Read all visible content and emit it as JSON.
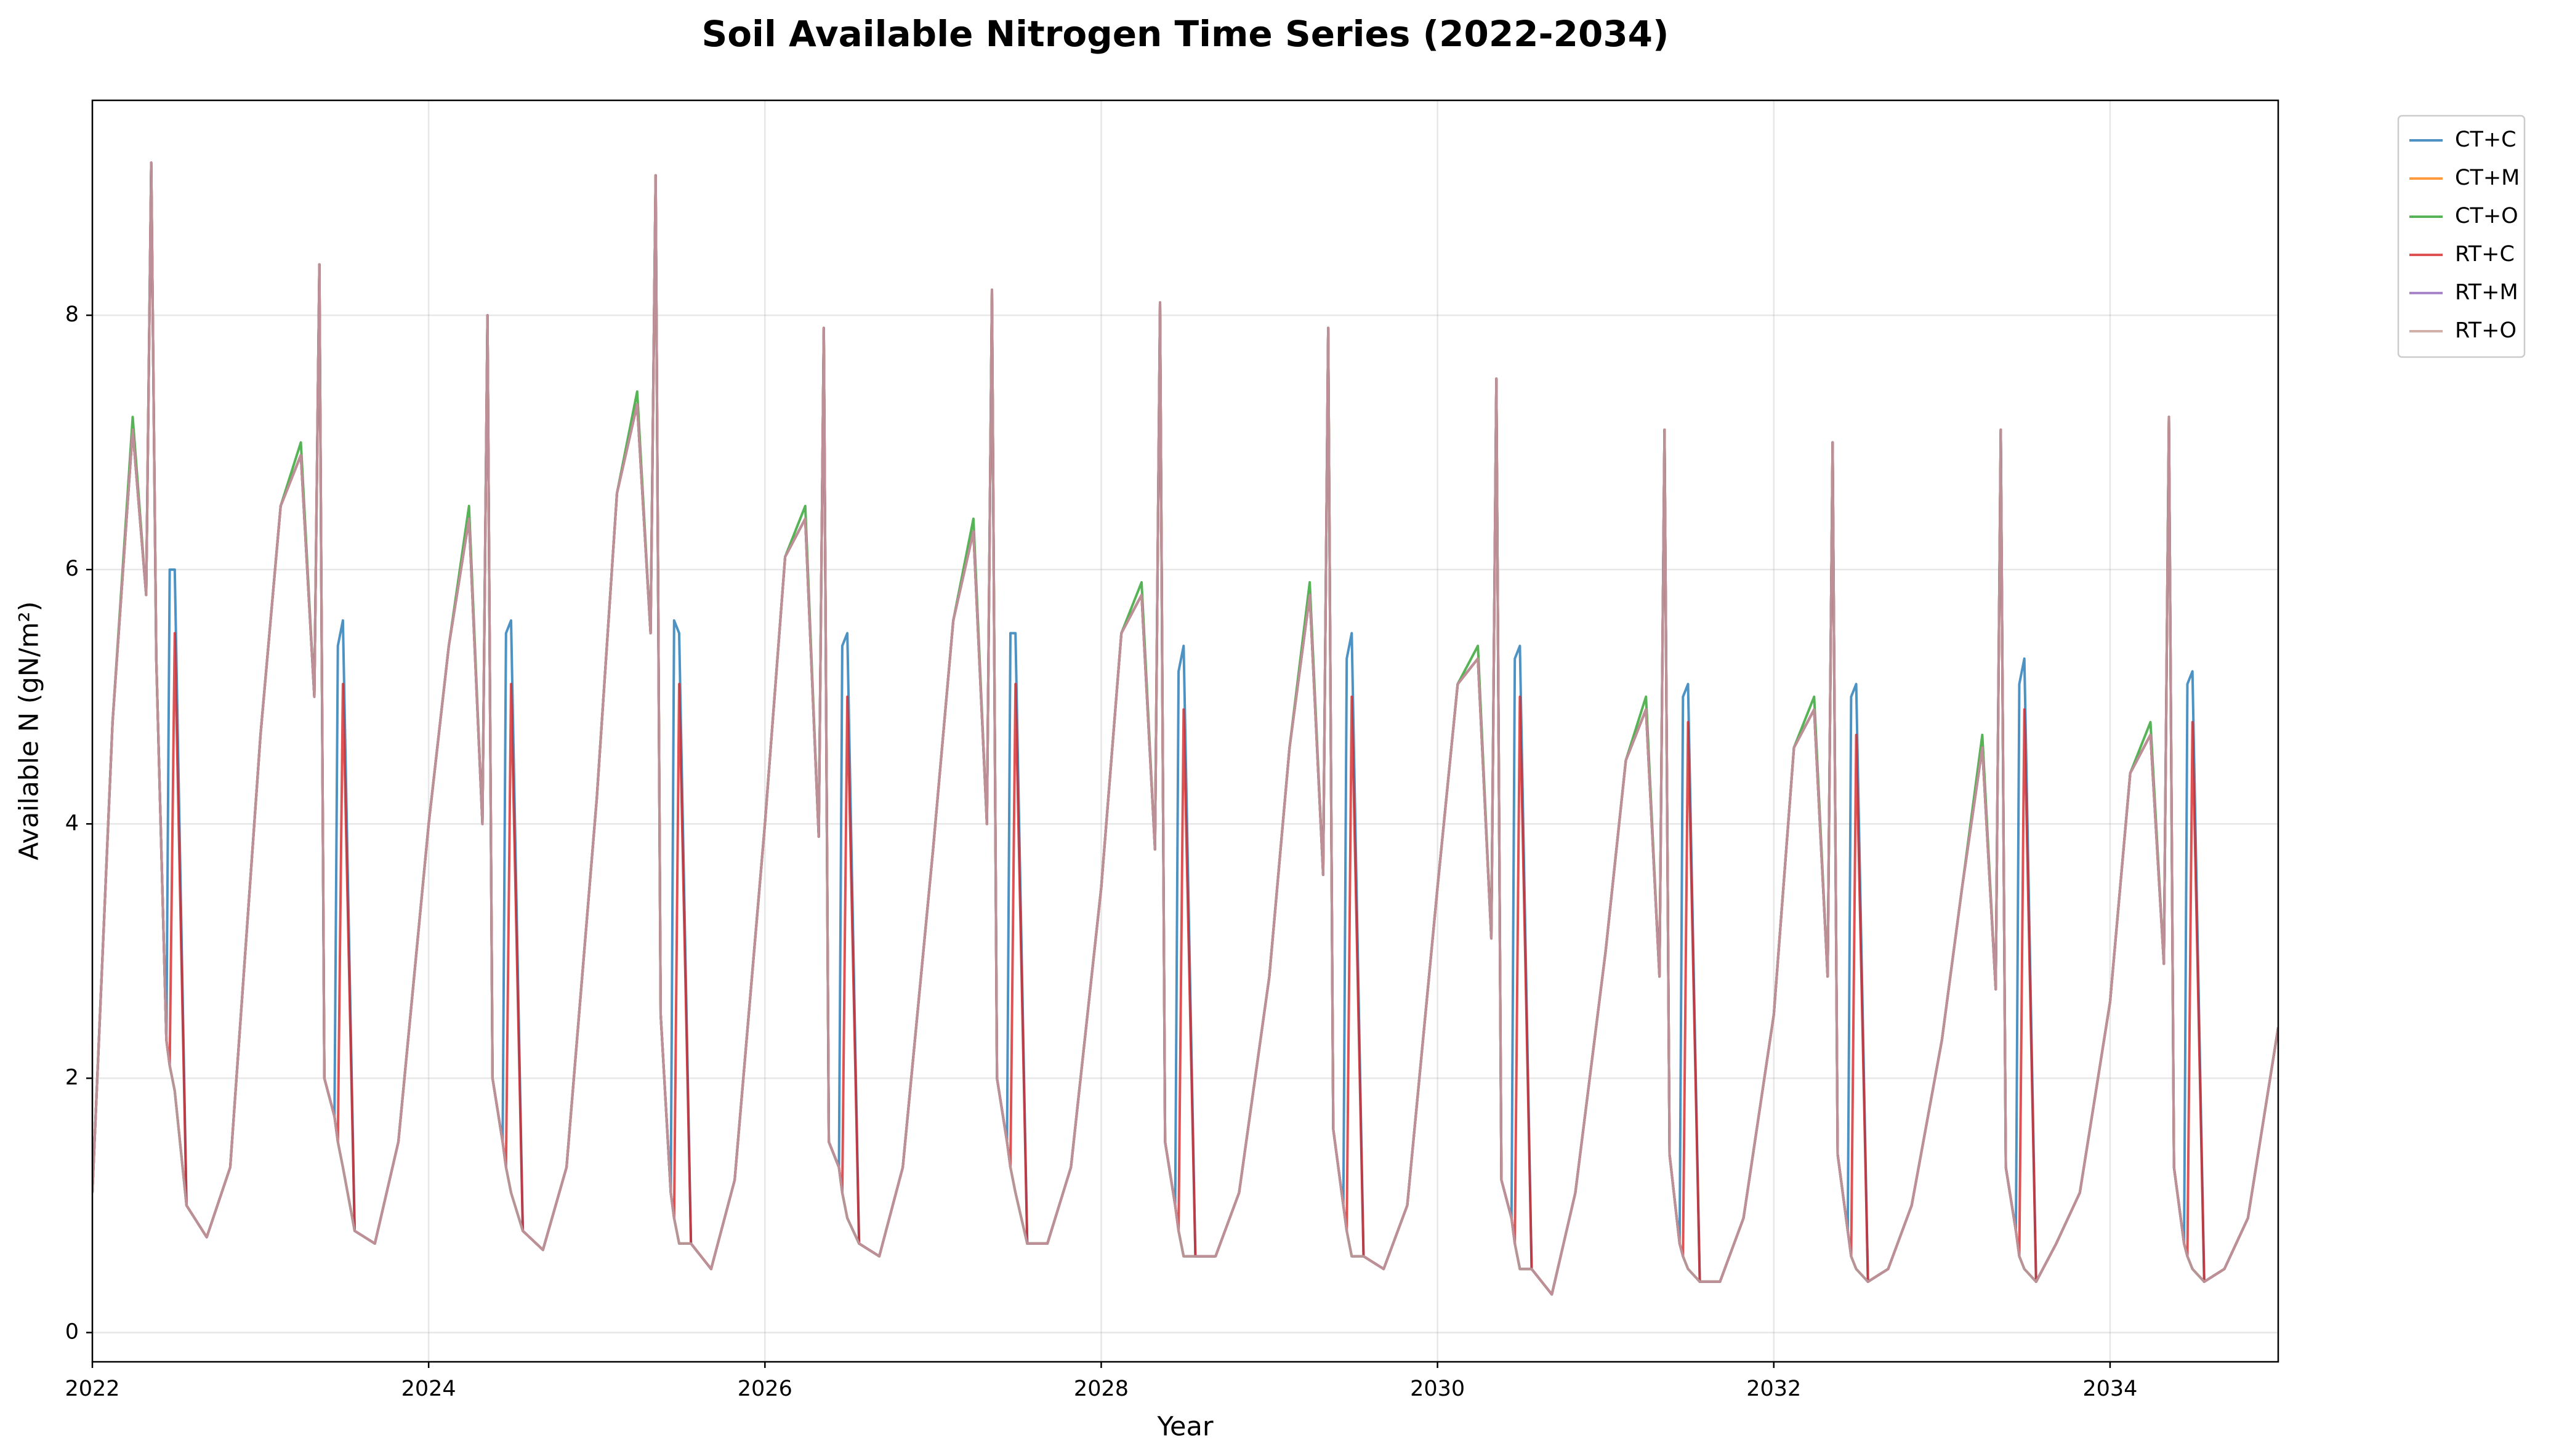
{
  "chart_data": {
    "type": "line",
    "title": "Soil Available Nitrogen Time Series (2022-2034)",
    "xlabel": "Year",
    "ylabel": "Available N (gN/m²)",
    "xlim": [
      2022,
      2035
    ],
    "ylim": [
      -0.23,
      9.69
    ],
    "xticks": [
      2022,
      2024,
      2026,
      2028,
      2030,
      2032,
      2034
    ],
    "yticks": [
      0,
      2,
      4,
      6,
      8
    ],
    "grid": true,
    "legend": "outside upper right",
    "line_opacity": 0.8,
    "x": [
      2022,
      2022.12,
      2022.24,
      2022.32,
      2022.35,
      2022.38,
      2022.44,
      2022.46,
      2022.49,
      2022.56,
      2022.68,
      2022.82,
      2023,
      2023.12,
      2023.24,
      2023.32,
      2023.35,
      2023.38,
      2023.44,
      2023.46,
      2023.49,
      2023.56,
      2023.68,
      2023.82,
      2024,
      2024.12,
      2024.24,
      2024.32,
      2024.35,
      2024.38,
      2024.44,
      2024.46,
      2024.49,
      2024.56,
      2024.68,
      2024.82,
      2025,
      2025.12,
      2025.24,
      2025.32,
      2025.35,
      2025.38,
      2025.44,
      2025.46,
      2025.49,
      2025.56,
      2025.68,
      2025.82,
      2026,
      2026.12,
      2026.24,
      2026.32,
      2026.35,
      2026.38,
      2026.44,
      2026.46,
      2026.49,
      2026.56,
      2026.68,
      2026.82,
      2027,
      2027.12,
      2027.24,
      2027.32,
      2027.35,
      2027.38,
      2027.44,
      2027.46,
      2027.49,
      2027.56,
      2027.68,
      2027.82,
      2028,
      2028.12,
      2028.24,
      2028.32,
      2028.35,
      2028.38,
      2028.44,
      2028.46,
      2028.49,
      2028.56,
      2028.68,
      2028.82,
      2029,
      2029.12,
      2029.24,
      2029.32,
      2029.35,
      2029.38,
      2029.44,
      2029.46,
      2029.49,
      2029.56,
      2029.68,
      2029.82,
      2030,
      2030.12,
      2030.24,
      2030.32,
      2030.35,
      2030.38,
      2030.44,
      2030.46,
      2030.49,
      2030.56,
      2030.68,
      2030.82,
      2031,
      2031.12,
      2031.24,
      2031.32,
      2031.35,
      2031.38,
      2031.44,
      2031.46,
      2031.49,
      2031.56,
      2031.68,
      2031.82,
      2032,
      2032.12,
      2032.24,
      2032.32,
      2032.35,
      2032.38,
      2032.44,
      2032.46,
      2032.49,
      2032.56,
      2032.68,
      2032.82,
      2033,
      2033.12,
      2033.24,
      2033.32,
      2033.35,
      2033.38,
      2033.44,
      2033.46,
      2033.49,
      2033.56,
      2033.68,
      2033.82,
      2034,
      2034.12,
      2034.24,
      2034.32,
      2034.35,
      2034.38,
      2034.44,
      2034.46,
      2034.49,
      2034.56,
      2034.68,
      2034.82,
      2035
    ],
    "series": [
      {
        "name": "CT+C",
        "color": "#1f77b4",
        "values": [
          1.1,
          4.8,
          7.1,
          5.8,
          9.2,
          5.3,
          2.3,
          6.0,
          6.0,
          1.0,
          0.75,
          1.3,
          4.7,
          6.5,
          6.9,
          5.0,
          8.4,
          2.0,
          1.7,
          5.4,
          5.6,
          0.8,
          0.7,
          1.5,
          4.0,
          5.4,
          6.4,
          4.0,
          8.0,
          2.0,
          1.5,
          5.5,
          5.6,
          0.8,
          0.65,
          1.3,
          4.2,
          6.6,
          7.3,
          5.5,
          9.1,
          2.5,
          1.1,
          5.6,
          5.5,
          0.7,
          0.5,
          1.2,
          4.0,
          6.1,
          6.4,
          3.9,
          7.9,
          1.5,
          1.3,
          5.4,
          5.5,
          0.7,
          0.6,
          1.3,
          3.8,
          5.6,
          6.3,
          4.0,
          8.2,
          2.0,
          1.5,
          5.5,
          5.5,
          0.7,
          0.7,
          1.3,
          3.5,
          5.5,
          5.8,
          3.8,
          8.1,
          1.5,
          1.0,
          5.2,
          5.4,
          0.6,
          0.6,
          1.1,
          2.8,
          4.6,
          5.8,
          3.6,
          7.9,
          1.6,
          1.0,
          5.3,
          5.5,
          0.6,
          0.5,
          1.0,
          3.5,
          5.1,
          5.3,
          3.1,
          7.5,
          1.2,
          0.9,
          5.3,
          5.4,
          0.5,
          0.3,
          1.1,
          3.0,
          4.5,
          4.9,
          2.8,
          7.1,
          1.4,
          0.7,
          5.0,
          5.1,
          0.4,
          0.4,
          0.9,
          2.5,
          4.6,
          4.9,
          2.8,
          7.0,
          1.4,
          0.8,
          5.0,
          5.1,
          0.4,
          0.5,
          1.0,
          2.3,
          3.5,
          4.6,
          2.7,
          7.1,
          1.3,
          0.8,
          5.1,
          5.3,
          0.4,
          0.7,
          1.1,
          2.6,
          4.4,
          4.7,
          2.9,
          7.2,
          1.3,
          0.7,
          5.1,
          5.2,
          0.4,
          0.5,
          0.9,
          2.4
        ]
      },
      {
        "name": "CT+M",
        "color": "#ff7f0e",
        "values": [
          1.1,
          4.8,
          7.1,
          5.8,
          9.2,
          5.3,
          2.3,
          2.1,
          1.9,
          1.0,
          0.75,
          1.3,
          4.7,
          6.5,
          6.9,
          5.0,
          8.4,
          2.0,
          1.7,
          1.5,
          1.3,
          0.8,
          0.7,
          1.5,
          4.0,
          5.4,
          6.4,
          4.0,
          8.0,
          2.0,
          1.5,
          1.3,
          1.1,
          0.8,
          0.65,
          1.3,
          4.2,
          6.6,
          7.3,
          5.5,
          9.1,
          2.5,
          1.1,
          0.9,
          0.7,
          0.7,
          0.5,
          1.2,
          4.0,
          6.1,
          6.4,
          3.9,
          7.9,
          1.5,
          1.3,
          1.1,
          0.9,
          0.7,
          0.6,
          1.3,
          3.8,
          5.6,
          6.3,
          4.0,
          8.2,
          2.0,
          1.5,
          1.3,
          1.1,
          0.7,
          0.7,
          1.3,
          3.5,
          5.5,
          5.8,
          3.8,
          8.1,
          1.5,
          1.0,
          0.8,
          0.6,
          0.6,
          0.6,
          1.1,
          2.8,
          4.6,
          5.8,
          3.6,
          7.9,
          1.6,
          1.0,
          0.8,
          0.6,
          0.6,
          0.5,
          1.0,
          3.5,
          5.1,
          5.3,
          3.1,
          7.5,
          1.2,
          0.9,
          0.7,
          0.5,
          0.5,
          0.3,
          1.1,
          3.0,
          4.5,
          4.9,
          2.8,
          7.1,
          1.4,
          0.7,
          0.6,
          0.5,
          0.4,
          0.4,
          0.9,
          2.5,
          4.6,
          4.9,
          2.8,
          7.0,
          1.4,
          0.8,
          0.6,
          0.5,
          0.4,
          0.5,
          1.0,
          2.3,
          3.5,
          4.6,
          2.7,
          7.1,
          1.3,
          0.8,
          0.6,
          0.5,
          0.4,
          0.7,
          1.1,
          2.6,
          4.4,
          4.7,
          2.9,
          7.2,
          1.3,
          0.7,
          0.6,
          0.5,
          0.4,
          0.5,
          0.9,
          2.4
        ]
      },
      {
        "name": "CT+O",
        "color": "#2ca02c",
        "values": [
          1.1,
          4.8,
          7.2,
          5.8,
          9.2,
          5.3,
          2.3,
          2.1,
          1.9,
          1.0,
          0.75,
          1.3,
          4.7,
          6.5,
          7.0,
          5.0,
          8.4,
          2.0,
          1.7,
          1.5,
          1.3,
          0.8,
          0.7,
          1.5,
          4.0,
          5.4,
          6.5,
          4.0,
          8.0,
          2.0,
          1.5,
          1.3,
          1.1,
          0.8,
          0.65,
          1.3,
          4.2,
          6.6,
          7.4,
          5.5,
          9.1,
          2.5,
          1.1,
          0.9,
          0.7,
          0.7,
          0.5,
          1.2,
          4.0,
          6.1,
          6.5,
          3.9,
          7.9,
          1.5,
          1.3,
          1.1,
          0.9,
          0.7,
          0.6,
          1.3,
          3.8,
          5.6,
          6.4,
          4.0,
          8.2,
          2.0,
          1.5,
          1.3,
          1.1,
          0.7,
          0.7,
          1.3,
          3.5,
          5.5,
          5.9,
          3.8,
          8.1,
          1.5,
          1.0,
          0.8,
          0.6,
          0.6,
          0.6,
          1.1,
          2.8,
          4.6,
          5.9,
          3.6,
          7.9,
          1.6,
          1.0,
          0.8,
          0.6,
          0.6,
          0.5,
          1.0,
          3.5,
          5.1,
          5.4,
          3.1,
          7.5,
          1.2,
          0.9,
          0.7,
          0.5,
          0.5,
          0.3,
          1.1,
          3.0,
          4.5,
          5.0,
          2.8,
          7.1,
          1.4,
          0.7,
          0.6,
          0.5,
          0.4,
          0.4,
          0.9,
          2.5,
          4.6,
          5.0,
          2.8,
          7.0,
          1.4,
          0.8,
          0.6,
          0.5,
          0.4,
          0.5,
          1.0,
          2.3,
          3.5,
          4.7,
          2.7,
          7.1,
          1.3,
          0.8,
          0.6,
          0.5,
          0.4,
          0.7,
          1.1,
          2.6,
          4.4,
          4.8,
          2.9,
          7.2,
          1.3,
          0.7,
          0.6,
          0.5,
          0.4,
          0.5,
          0.9,
          2.4
        ]
      },
      {
        "name": "RT+C",
        "color": "#d62728",
        "values": [
          1.1,
          4.8,
          7.1,
          5.8,
          9.2,
          5.3,
          2.3,
          2.1,
          5.5,
          1.0,
          0.75,
          1.3,
          4.7,
          6.5,
          6.9,
          5.0,
          8.4,
          2.0,
          1.7,
          1.5,
          5.1,
          0.8,
          0.7,
          1.5,
          4.0,
          5.4,
          6.4,
          4.0,
          8.0,
          2.0,
          1.5,
          1.3,
          5.1,
          0.8,
          0.65,
          1.3,
          4.2,
          6.6,
          7.3,
          5.5,
          9.1,
          2.5,
          1.1,
          0.9,
          5.1,
          0.7,
          0.5,
          1.2,
          4.0,
          6.1,
          6.4,
          3.9,
          7.9,
          1.5,
          1.3,
          1.1,
          5.0,
          0.7,
          0.6,
          1.3,
          3.8,
          5.6,
          6.3,
          4.0,
          8.2,
          2.0,
          1.5,
          1.3,
          5.1,
          0.7,
          0.7,
          1.3,
          3.5,
          5.5,
          5.8,
          3.8,
          8.1,
          1.5,
          1.0,
          0.8,
          4.9,
          0.6,
          0.6,
          1.1,
          2.8,
          4.6,
          5.8,
          3.6,
          7.9,
          1.6,
          1.0,
          0.8,
          5.0,
          0.6,
          0.5,
          1.0,
          3.5,
          5.1,
          5.3,
          3.1,
          7.5,
          1.2,
          0.9,
          0.7,
          5.0,
          0.5,
          0.3,
          1.1,
          3.0,
          4.5,
          4.9,
          2.8,
          7.1,
          1.4,
          0.7,
          0.6,
          4.8,
          0.4,
          0.4,
          0.9,
          2.5,
          4.6,
          4.9,
          2.8,
          7.0,
          1.4,
          0.8,
          0.6,
          4.7,
          0.4,
          0.5,
          1.0,
          2.3,
          3.5,
          4.6,
          2.7,
          7.1,
          1.3,
          0.8,
          0.6,
          4.9,
          0.4,
          0.7,
          1.1,
          2.6,
          4.4,
          4.7,
          2.9,
          7.2,
          1.3,
          0.7,
          0.6,
          4.8,
          0.4,
          0.5,
          0.9,
          2.4
        ]
      },
      {
        "name": "RT+M",
        "color": "#9467bd",
        "values": [
          1.1,
          4.8,
          7.1,
          5.8,
          9.2,
          5.3,
          2.3,
          2.1,
          1.9,
          1.0,
          0.75,
          1.3,
          4.7,
          6.5,
          6.9,
          5.0,
          8.4,
          2.0,
          1.7,
          1.5,
          1.3,
          0.8,
          0.7,
          1.5,
          4.0,
          5.4,
          6.4,
          4.0,
          8.0,
          2.0,
          1.5,
          1.3,
          1.1,
          0.8,
          0.65,
          1.3,
          4.2,
          6.6,
          7.3,
          5.5,
          9.1,
          2.5,
          1.1,
          0.9,
          0.7,
          0.7,
          0.5,
          1.2,
          4.0,
          6.1,
          6.4,
          3.9,
          7.9,
          1.5,
          1.3,
          1.1,
          0.9,
          0.7,
          0.6,
          1.3,
          3.8,
          5.6,
          6.3,
          4.0,
          8.2,
          2.0,
          1.5,
          1.3,
          1.1,
          0.7,
          0.7,
          1.3,
          3.5,
          5.5,
          5.8,
          3.8,
          8.1,
          1.5,
          1.0,
          0.8,
          0.6,
          0.6,
          0.6,
          1.1,
          2.8,
          4.6,
          5.8,
          3.6,
          7.9,
          1.6,
          1.0,
          0.8,
          0.6,
          0.6,
          0.5,
          1.0,
          3.5,
          5.1,
          5.3,
          3.1,
          7.5,
          1.2,
          0.9,
          0.7,
          0.5,
          0.5,
          0.3,
          1.1,
          3.0,
          4.5,
          4.9,
          2.8,
          7.1,
          1.4,
          0.7,
          0.6,
          0.5,
          0.4,
          0.4,
          0.9,
          2.5,
          4.6,
          4.9,
          2.8,
          7.0,
          1.4,
          0.8,
          0.6,
          0.5,
          0.4,
          0.5,
          1.0,
          2.3,
          3.5,
          4.6,
          2.7,
          7.1,
          1.3,
          0.8,
          0.6,
          0.5,
          0.4,
          0.7,
          1.1,
          2.6,
          4.4,
          4.7,
          2.9,
          7.2,
          1.3,
          0.7,
          0.6,
          0.5,
          0.4,
          0.5,
          0.9,
          2.4
        ]
      },
      {
        "name": "RT+O",
        "color": "#c49c94",
        "values": [
          1.1,
          4.8,
          7.1,
          5.8,
          9.2,
          5.3,
          2.3,
          2.1,
          1.9,
          1.0,
          0.75,
          1.3,
          4.7,
          6.5,
          6.9,
          5.0,
          8.4,
          2.0,
          1.7,
          1.5,
          1.3,
          0.8,
          0.7,
          1.5,
          4.0,
          5.4,
          6.4,
          4.0,
          8.0,
          2.0,
          1.5,
          1.3,
          1.1,
          0.8,
          0.65,
          1.3,
          4.2,
          6.6,
          7.3,
          5.5,
          9.1,
          2.5,
          1.1,
          0.9,
          0.7,
          0.7,
          0.5,
          1.2,
          4.0,
          6.1,
          6.4,
          3.9,
          7.9,
          1.5,
          1.3,
          1.1,
          0.9,
          0.7,
          0.6,
          1.3,
          3.8,
          5.6,
          6.3,
          4.0,
          8.2,
          2.0,
          1.5,
          1.3,
          1.1,
          0.7,
          0.7,
          1.3,
          3.5,
          5.5,
          5.8,
          3.8,
          8.1,
          1.5,
          1.0,
          0.8,
          0.6,
          0.6,
          0.6,
          1.1,
          2.8,
          4.6,
          5.8,
          3.6,
          7.9,
          1.6,
          1.0,
          0.8,
          0.6,
          0.6,
          0.5,
          1.0,
          3.5,
          5.1,
          5.3,
          3.1,
          7.5,
          1.2,
          0.9,
          0.7,
          0.5,
          0.5,
          0.3,
          1.1,
          3.0,
          4.5,
          4.9,
          2.8,
          7.1,
          1.4,
          0.7,
          0.6,
          0.5,
          0.4,
          0.4,
          0.9,
          2.5,
          4.6,
          4.9,
          2.8,
          7.0,
          1.4,
          0.8,
          0.6,
          0.5,
          0.4,
          0.5,
          1.0,
          2.3,
          3.5,
          4.6,
          2.7,
          7.1,
          1.3,
          0.8,
          0.6,
          0.5,
          0.4,
          0.7,
          1.1,
          2.6,
          4.4,
          4.7,
          2.9,
          7.2,
          1.3,
          0.7,
          0.6,
          0.5,
          0.4,
          0.5,
          0.9,
          2.4
        ]
      }
    ]
  }
}
